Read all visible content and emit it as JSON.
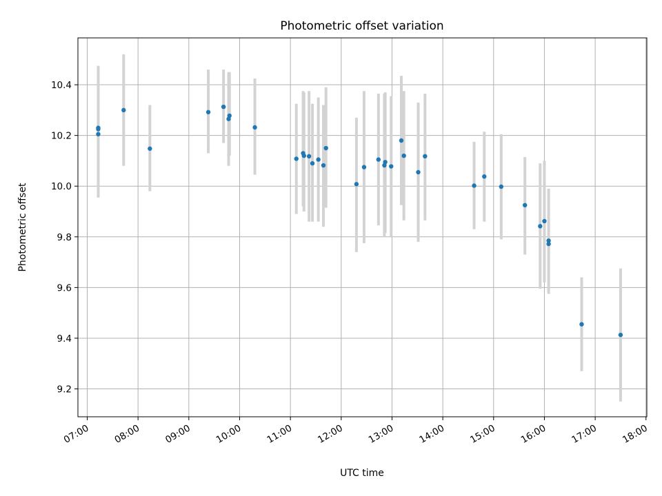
{
  "chart_data": {
    "type": "scatter",
    "title": "Photometric offset variation",
    "xlabel": "UTC time",
    "ylabel": "Photometric offset",
    "x_tick_labels": [
      "07:00",
      "08:00",
      "09:00",
      "10:00",
      "11:00",
      "12:00",
      "13:00",
      "14:00",
      "15:00",
      "16:00",
      "17:00",
      "18:00"
    ],
    "y_tick_labels": [
      "9.2",
      "9.4",
      "9.6",
      "9.8",
      "10.0",
      "10.2",
      "10.4"
    ],
    "y_ticks": [
      9.2,
      9.4,
      9.6,
      9.8,
      10.0,
      10.2,
      10.4
    ],
    "xlim": [
      "06:49",
      "18:01"
    ],
    "ylim": [
      9.09,
      10.585
    ],
    "grid": true,
    "colors": {
      "points": "#1f77b4",
      "errorbars": "#d3d3d3",
      "grid": "#b0b0b0"
    },
    "points": [
      {
        "x": "07:13",
        "y": 10.205,
        "lo": 9.955,
        "hi": 10.475
      },
      {
        "x": "07:13",
        "y": 10.23
      },
      {
        "x": "07:13",
        "y": 10.225
      },
      {
        "x": "07:43",
        "y": 10.3,
        "lo": 10.08,
        "hi": 10.52
      },
      {
        "x": "08:14",
        "y": 10.148,
        "lo": 9.98,
        "hi": 10.32
      },
      {
        "x": "09:23",
        "y": 10.292,
        "lo": 10.13,
        "hi": 10.46
      },
      {
        "x": "09:41",
        "y": 10.313,
        "lo": 10.17,
        "hi": 10.46
      },
      {
        "x": "09:47",
        "y": 10.265,
        "lo": 10.08,
        "hi": 10.45
      },
      {
        "x": "09:48",
        "y": 10.278,
        "lo": 10.12,
        "hi": 10.45
      },
      {
        "x": "10:18",
        "y": 10.232,
        "lo": 10.045,
        "hi": 10.425
      },
      {
        "x": "11:07",
        "y": 10.108,
        "lo": 9.89,
        "hi": 10.325
      },
      {
        "x": "11:15",
        "y": 10.13,
        "lo": 9.92,
        "hi": 10.375
      },
      {
        "x": "11:16",
        "y": 10.12,
        "lo": 9.9,
        "hi": 10.37
      },
      {
        "x": "11:22",
        "y": 10.118,
        "lo": 9.86,
        "hi": 10.375
      },
      {
        "x": "11:26",
        "y": 10.09,
        "lo": 9.86,
        "hi": 10.325
      },
      {
        "x": "11:33",
        "y": 10.105,
        "lo": 9.86,
        "hi": 10.35
      },
      {
        "x": "11:39",
        "y": 10.082,
        "lo": 9.84,
        "hi": 10.32
      },
      {
        "x": "11:42",
        "y": 10.15,
        "lo": 9.915,
        "hi": 10.39
      },
      {
        "x": "12:18",
        "y": 10.008,
        "lo": 9.74,
        "hi": 10.27
      },
      {
        "x": "12:27",
        "y": 10.075,
        "lo": 9.775,
        "hi": 10.375
      },
      {
        "x": "12:44",
        "y": 10.105,
        "lo": 9.845,
        "hi": 10.365
      },
      {
        "x": "12:51",
        "y": 10.082,
        "lo": 9.8,
        "hi": 10.365
      },
      {
        "x": "12:52",
        "y": 10.095,
        "lo": 9.815,
        "hi": 10.37
      },
      {
        "x": "12:59",
        "y": 10.078,
        "lo": 9.8,
        "hi": 10.355
      },
      {
        "x": "13:11",
        "y": 10.18,
        "lo": 9.925,
        "hi": 10.435
      },
      {
        "x": "13:14",
        "y": 10.12,
        "lo": 9.865,
        "hi": 10.375
      },
      {
        "x": "13:31",
        "y": 10.055,
        "lo": 9.78,
        "hi": 10.33
      },
      {
        "x": "13:39",
        "y": 10.118,
        "lo": 9.865,
        "hi": 10.365
      },
      {
        "x": "14:37",
        "y": 10.002,
        "lo": 9.83,
        "hi": 10.175
      },
      {
        "x": "14:49",
        "y": 10.038,
        "lo": 9.86,
        "hi": 10.215
      },
      {
        "x": "15:09",
        "y": 9.998,
        "lo": 9.79,
        "hi": 10.205
      },
      {
        "x": "15:37",
        "y": 9.925,
        "lo": 9.73,
        "hi": 10.115
      },
      {
        "x": "15:55",
        "y": 9.842,
        "lo": 9.595,
        "hi": 10.09
      },
      {
        "x": "16:00",
        "y": 9.862,
        "lo": 9.62,
        "hi": 10.1
      },
      {
        "x": "16:05",
        "y": 9.785,
        "lo": 9.575,
        "hi": 9.99
      },
      {
        "x": "16:05",
        "y": 9.772
      },
      {
        "x": "16:44",
        "y": 9.455,
        "lo": 9.27,
        "hi": 9.64
      },
      {
        "x": "17:30",
        "y": 9.413,
        "lo": 9.15,
        "hi": 9.675
      }
    ]
  }
}
